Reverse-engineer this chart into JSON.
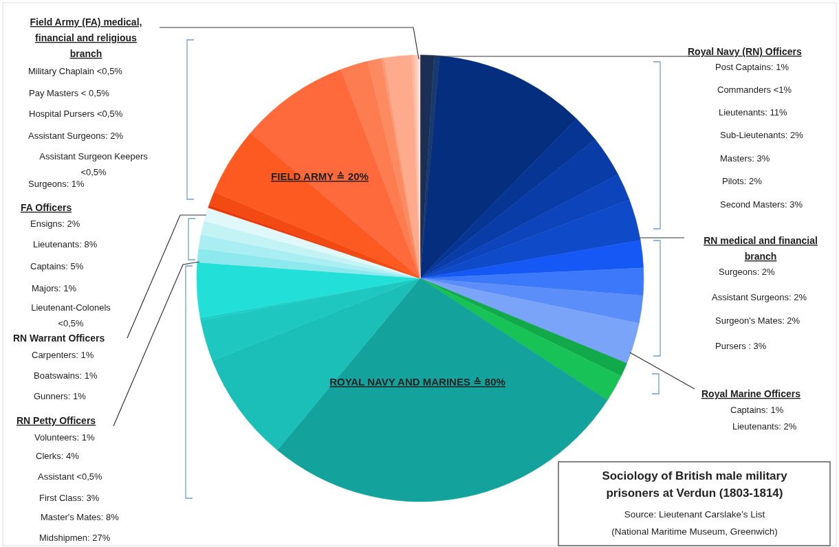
{
  "chart_data": {
    "type": "pie",
    "title": "Sociology of British male military prisoners at Verdun (1803-1814)",
    "categories": [
      null,
      null,
      null,
      null,
      null,
      null,
      null,
      null,
      null,
      null,
      null,
      null,
      null,
      null,
      null,
      null,
      null,
      null,
      null,
      null,
      null,
      null,
      null,
      null,
      null,
      null,
      null,
      null,
      null,
      null,
      null,
      null,
      null
    ],
    "values": [
      1,
      0.4,
      11,
      2,
      3,
      2,
      3,
      2,
      2,
      2,
      3,
      1,
      2,
      27,
      8,
      3,
      0.2,
      4,
      1,
      1,
      1,
      1,
      0.2,
      1,
      5,
      8,
      2,
      1,
      0.2,
      2,
      0.2,
      0.2,
      0.2
    ],
    "colors": [
      "#1b2f55",
      "#1a3a6e",
      "#062e7f",
      "#073594",
      "#0a3ca8",
      "#0d44bb",
      "#0f4bc8",
      "#1558f5",
      "#3b78fa",
      "#5c8efa",
      "#7aa4f8",
      "#12a94a",
      "#18c257",
      "#13a39c",
      "#1bbfb8",
      "#1ec8c0",
      "#20cfc7",
      "#22e0d8",
      "#8ee9ee",
      "#a8eef2",
      "#c4f3f6",
      "#e0f8fa",
      "#e8380a",
      "#f24a12",
      "#fd5a22",
      "#fe6a3c",
      "#fd7c50",
      "#fd8b62",
      "#fd9a78",
      "#fdab8c",
      "#fdb9a0",
      "#fdc8b4",
      "#fde0d4"
    ],
    "annotations": [
      "Field Army (FA) medical, financial and religious branch",
      "FA Officers",
      "RN Warrant Officers",
      "RN Petty Officers",
      "Royal Navy (RN) Officers",
      "RN medical and financial branch",
      "Royal Marine Officers",
      "FIELD ARMY ≙ 20%",
      "ROYAL NAVY AND MARINES ≙  80%",
      "Source: Lieutenant Carslake’s List",
      "(National Maritime Museum, Greenwich)",
      "Post Captains: 1%",
      "Commanders <1%",
      "Lieutenants: 11%",
      "Sub-Lieutenants: 2%",
      "Masters: 3%",
      "Pilots: 2%",
      "Second Masters: 3%",
      "Surgeons: 2%",
      "Assistant Surgeons: 2%",
      "Surgeon's Mates: 2%",
      "Pursers : 3%",
      "Captains: 1%",
      "Lieutenants: 2%",
      "Midshipmen: 27%",
      "Master's Mates: 8%",
      "First Class: 3%",
      "Assistant <0,5%",
      "Clerks: 4%",
      "Volunteers: 1%",
      "Gunners: 1%",
      "Boatswains: 1%",
      "Carpenters: 1%",
      "Lieutenant-Colonels <0,5%",
      "Majors: 1%",
      "Captains: 5%",
      "Lieutenants: 8%",
      "Ensigns: 2%",
      "Surgeons: 1%",
      "Assistant Surgeon Keepers <0,5%",
      "Assistant Surgeons: 2%",
      "Hospital Pursers <0,5%",
      "Pay Masters < 0,5%",
      "Military Chaplain <0,5%"
    ]
  }
}
